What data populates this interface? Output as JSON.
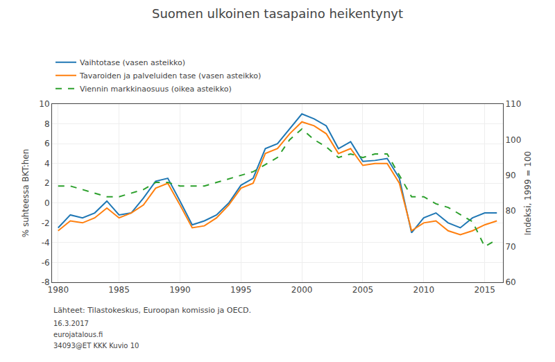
{
  "chart_data": {
    "type": "line",
    "title": "Suomen ulkoinen tasapaino heikentynyt",
    "ylabel": "% suhteessa BKT:hen",
    "y2label": "Indeksi, 1999 = 100",
    "x": [
      1980,
      1981,
      1982,
      1983,
      1984,
      1985,
      1986,
      1987,
      1988,
      1989,
      1990,
      1991,
      1992,
      1993,
      1994,
      1995,
      1996,
      1997,
      1998,
      1999,
      2000,
      2001,
      2002,
      2003,
      2004,
      2005,
      2006,
      2007,
      2008,
      2009,
      2010,
      2011,
      2012,
      2013,
      2014,
      2015,
      2016
    ],
    "series": [
      {
        "name": "Vaihtotase (vasen asteikko)",
        "line_style": "solid",
        "values": [
          -2.5,
          -1.2,
          -1.5,
          -1.0,
          0.2,
          -1.2,
          -1.0,
          0.5,
          2.2,
          2.5,
          0.2,
          -2.2,
          -1.8,
          -1.2,
          0.0,
          1.8,
          2.5,
          5.5,
          6.0,
          7.5,
          9.0,
          8.5,
          7.8,
          5.5,
          6.2,
          4.2,
          4.3,
          4.5,
          2.5,
          -3.0,
          -1.5,
          -1.0,
          -2.0,
          -2.5,
          -1.5,
          -1.0,
          -1.0
        ]
      },
      {
        "name": "Tavaroiden ja palveluiden tase (vasen asteikko)",
        "line_style": "solid",
        "values": [
          -2.8,
          -1.8,
          -2.0,
          -1.5,
          -0.5,
          -1.5,
          -1.0,
          -0.2,
          1.5,
          2.0,
          -0.2,
          -2.5,
          -2.3,
          -1.5,
          -0.2,
          1.5,
          2.0,
          5.0,
          5.5,
          7.0,
          8.2,
          7.8,
          7.0,
          5.0,
          5.5,
          3.8,
          4.0,
          4.0,
          2.0,
          -2.8,
          -2.0,
          -1.8,
          -2.8,
          -3.2,
          -2.8,
          -2.2,
          -1.8
        ]
      },
      {
        "name": "Viennin markkinaosuus (oikea asteikko)",
        "line_style": "dashed",
        "axis": "y2",
        "values": [
          87,
          87,
          86,
          85,
          84,
          84,
          85,
          86,
          88,
          88,
          87,
          87,
          87,
          88,
          89,
          90,
          91,
          93,
          95,
          100,
          103,
          100,
          98,
          95,
          96,
          95,
          96,
          96,
          90,
          84,
          84,
          82,
          81,
          79,
          77,
          70,
          72
        ]
      }
    ],
    "xlim": [
      1979.5,
      2016.5
    ],
    "xticks": [
      1980,
      1985,
      1990,
      1995,
      2000,
      2005,
      2010,
      2015
    ],
    "ylim": [
      -8,
      10
    ],
    "yticks": [
      -8,
      -6,
      -4,
      -2,
      0,
      2,
      4,
      6,
      8,
      10
    ],
    "y2lim": [
      60,
      110
    ],
    "y2ticks": [
      60,
      70,
      80,
      90,
      100,
      110
    ],
    "grid": true,
    "legend": "upper left",
    "annotations": [
      "Lähteet: Tilastokeskus, Euroopan komissio ja OECD.",
      "16.3.2017",
      "eurojatalous.fi",
      "34093@ET KKK Kuvio 10"
    ]
  }
}
